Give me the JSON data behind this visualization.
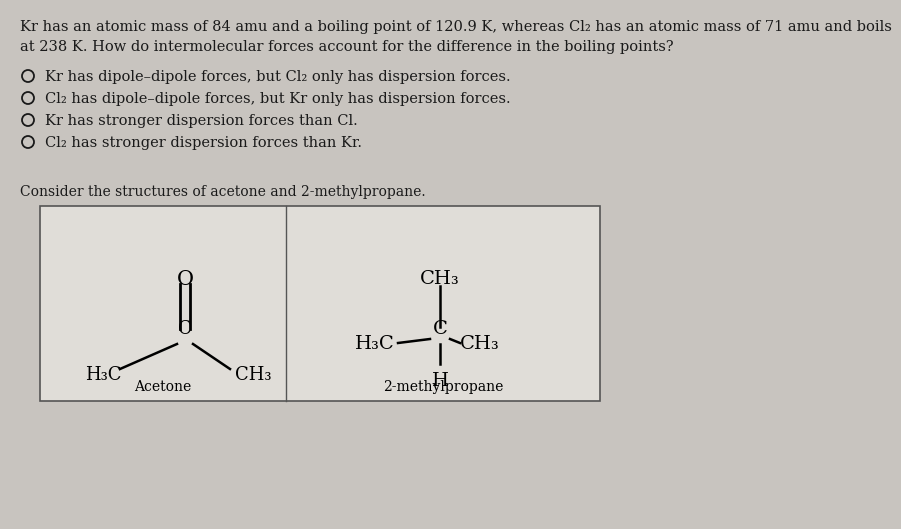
{
  "bg_color": "#c8c4bf",
  "box_bg": "#e8e6e2",
  "text_color": "#1a1a1a",
  "title_line1": "Kr has an atomic mass of 84 amu and a boiling point of 120.9 K, whereas Cl₂ has an atomic mass of 71 amu and boils",
  "title_line2": "at 238 K. How do intermolecular forces account for the difference in the boiling points?",
  "options": [
    "Kr has dipole–dipole forces, but Cl₂ only has dispersion forces.",
    "Cl₂ has dipole–dipole forces, but Kr only has dispersion forces.",
    "Kr has stronger dispersion forces than Cl.",
    "Cl₂ has stronger dispersion forces than Kr."
  ],
  "consider_text": "Consider the structures of acetone and 2-methylpropane.",
  "acetone_label": "Acetone",
  "methylpropane_label": "2-methylpropane",
  "font_size_title": 10.5,
  "font_size_options": 10.5,
  "font_size_consider": 10.0,
  "font_size_chem": 13,
  "font_size_label": 9
}
